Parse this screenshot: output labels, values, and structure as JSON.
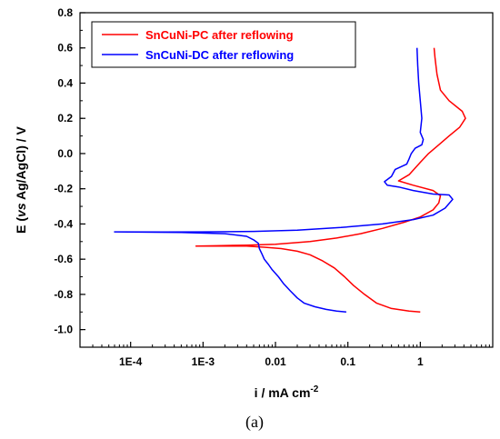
{
  "chart_data": {
    "type": "line",
    "xlabel": "i / mA cm",
    "xlabel_sup": "-2",
    "ylabel_parts": [
      "E (",
      "vs",
      " Ag/AgCl) / V"
    ],
    "x_scale": "log",
    "xlim": [
      2e-05,
      10
    ],
    "ylim": [
      -1.1,
      0.8
    ],
    "x_ticks": [
      {
        "value": 0.0001,
        "label": "1E-4"
      },
      {
        "value": 0.001,
        "label": "1E-3"
      },
      {
        "value": 0.01,
        "label": "0.01"
      },
      {
        "value": 0.1,
        "label": "0.1"
      },
      {
        "value": 1,
        "label": "1"
      }
    ],
    "y_ticks": [
      {
        "value": 0.8,
        "label": "0.8"
      },
      {
        "value": 0.6,
        "label": "0.6"
      },
      {
        "value": 0.4,
        "label": "0.4"
      },
      {
        "value": 0.2,
        "label": "0.2"
      },
      {
        "value": 0.0,
        "label": "0.0"
      },
      {
        "value": -0.2,
        "label": "-0.2"
      },
      {
        "value": -0.4,
        "label": "-0.4"
      },
      {
        "value": -0.6,
        "label": "-0.6"
      },
      {
        "value": -0.8,
        "label": "-0.8"
      },
      {
        "value": -1.0,
        "label": "-1.0"
      }
    ],
    "legend_position": "top-left",
    "grid": false,
    "series": [
      {
        "name": "SnCuNi-PC after reflowing",
        "color": "#ff0000",
        "points": [
          [
            1.0,
            -0.9
          ],
          [
            0.7,
            -0.895
          ],
          [
            0.4,
            -0.88
          ],
          [
            0.25,
            -0.85
          ],
          [
            0.17,
            -0.8
          ],
          [
            0.12,
            -0.75
          ],
          [
            0.09,
            -0.7
          ],
          [
            0.065,
            -0.65
          ],
          [
            0.045,
            -0.61
          ],
          [
            0.03,
            -0.575
          ],
          [
            0.02,
            -0.555
          ],
          [
            0.012,
            -0.54
          ],
          [
            0.007,
            -0.532
          ],
          [
            0.004,
            -0.526
          ],
          [
            0.0008,
            -0.526
          ],
          [
            0.0015,
            -0.524
          ],
          [
            0.004,
            -0.52
          ],
          [
            0.01,
            -0.515
          ],
          [
            0.03,
            -0.5
          ],
          [
            0.07,
            -0.48
          ],
          [
            0.15,
            -0.455
          ],
          [
            0.3,
            -0.425
          ],
          [
            0.6,
            -0.39
          ],
          [
            1.0,
            -0.36
          ],
          [
            1.5,
            -0.32
          ],
          [
            1.8,
            -0.28
          ],
          [
            1.9,
            -0.24
          ],
          [
            1.5,
            -0.21
          ],
          [
            0.8,
            -0.18
          ],
          [
            0.5,
            -0.155
          ],
          [
            0.7,
            -0.12
          ],
          [
            1.0,
            -0.05
          ],
          [
            1.3,
            0.0
          ],
          [
            1.8,
            0.05
          ],
          [
            2.5,
            0.1
          ],
          [
            3.5,
            0.15
          ],
          [
            4.2,
            0.2
          ],
          [
            3.8,
            0.24
          ],
          [
            2.5,
            0.3
          ],
          [
            1.9,
            0.36
          ],
          [
            1.7,
            0.45
          ],
          [
            1.6,
            0.54
          ],
          [
            1.55,
            0.6
          ]
        ]
      },
      {
        "name": "SnCuNi-DC after reflowing",
        "color": "#0000ff",
        "points": [
          [
            0.095,
            -0.9
          ],
          [
            0.07,
            -0.895
          ],
          [
            0.05,
            -0.885
          ],
          [
            0.035,
            -0.87
          ],
          [
            0.025,
            -0.85
          ],
          [
            0.02,
            -0.82
          ],
          [
            0.016,
            -0.78
          ],
          [
            0.013,
            -0.74
          ],
          [
            0.011,
            -0.7
          ],
          [
            0.009,
            -0.66
          ],
          [
            0.008,
            -0.63
          ],
          [
            0.007,
            -0.6
          ],
          [
            0.0065,
            -0.57
          ],
          [
            0.006,
            -0.54
          ],
          [
            0.0058,
            -0.51
          ],
          [
            0.005,
            -0.49
          ],
          [
            0.004,
            -0.47
          ],
          [
            0.002,
            -0.455
          ],
          [
            0.0005,
            -0.448
          ],
          [
            6e-05,
            -0.445
          ],
          [
            0.0003,
            -0.446
          ],
          [
            0.001,
            -0.445
          ],
          [
            0.005,
            -0.442
          ],
          [
            0.02,
            -0.435
          ],
          [
            0.08,
            -0.42
          ],
          [
            0.3,
            -0.4
          ],
          [
            0.8,
            -0.375
          ],
          [
            1.5,
            -0.35
          ],
          [
            2.2,
            -0.31
          ],
          [
            2.8,
            -0.26
          ],
          [
            2.5,
            -0.235
          ],
          [
            1.5,
            -0.23
          ],
          [
            0.8,
            -0.21
          ],
          [
            0.5,
            -0.19
          ],
          [
            0.35,
            -0.18
          ],
          [
            0.32,
            -0.16
          ],
          [
            0.4,
            -0.13
          ],
          [
            0.45,
            -0.09
          ],
          [
            0.65,
            -0.06
          ],
          [
            0.7,
            -0.03
          ],
          [
            0.75,
            0.0
          ],
          [
            0.85,
            0.03
          ],
          [
            1.05,
            0.05
          ],
          [
            1.1,
            0.08
          ],
          [
            1.0,
            0.12
          ],
          [
            1.05,
            0.2
          ],
          [
            1.0,
            0.3
          ],
          [
            0.95,
            0.4
          ],
          [
            0.92,
            0.5
          ],
          [
            0.9,
            0.6
          ]
        ]
      }
    ]
  },
  "panel_label": "(a)"
}
